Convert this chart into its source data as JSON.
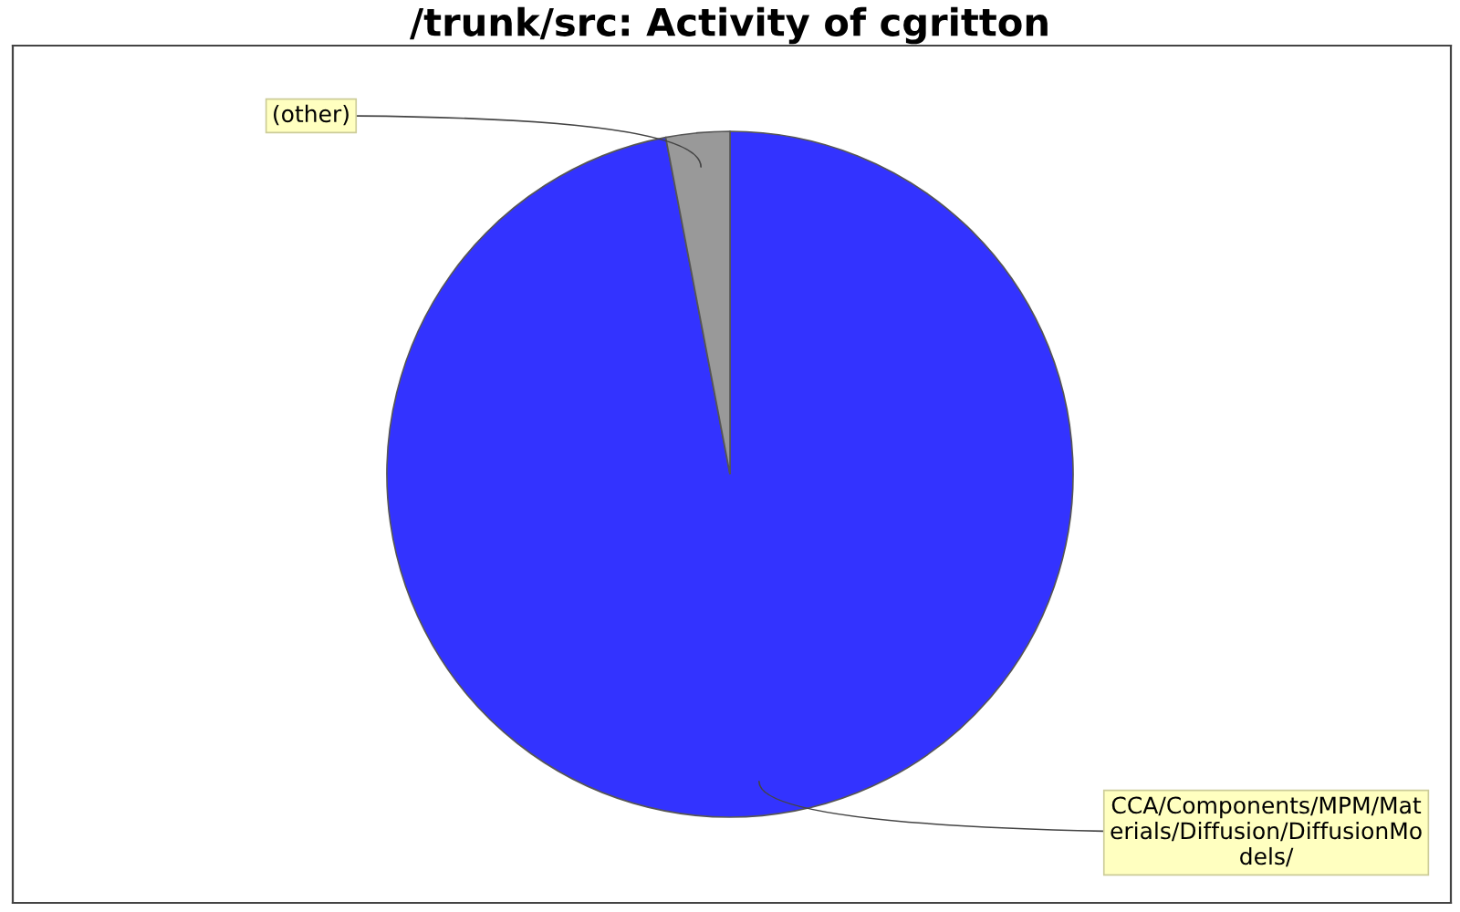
{
  "chart_data": {
    "type": "pie",
    "title": "/trunk/src: Activity of cgritton",
    "categories": [
      "CCA/Components/MPM/Mat\nerials/Diffusion/DiffusionMo\ndels/",
      "(other)"
    ],
    "values": [
      97,
      3
    ],
    "colors": [
      "#3333ff",
      "#999999"
    ]
  }
}
